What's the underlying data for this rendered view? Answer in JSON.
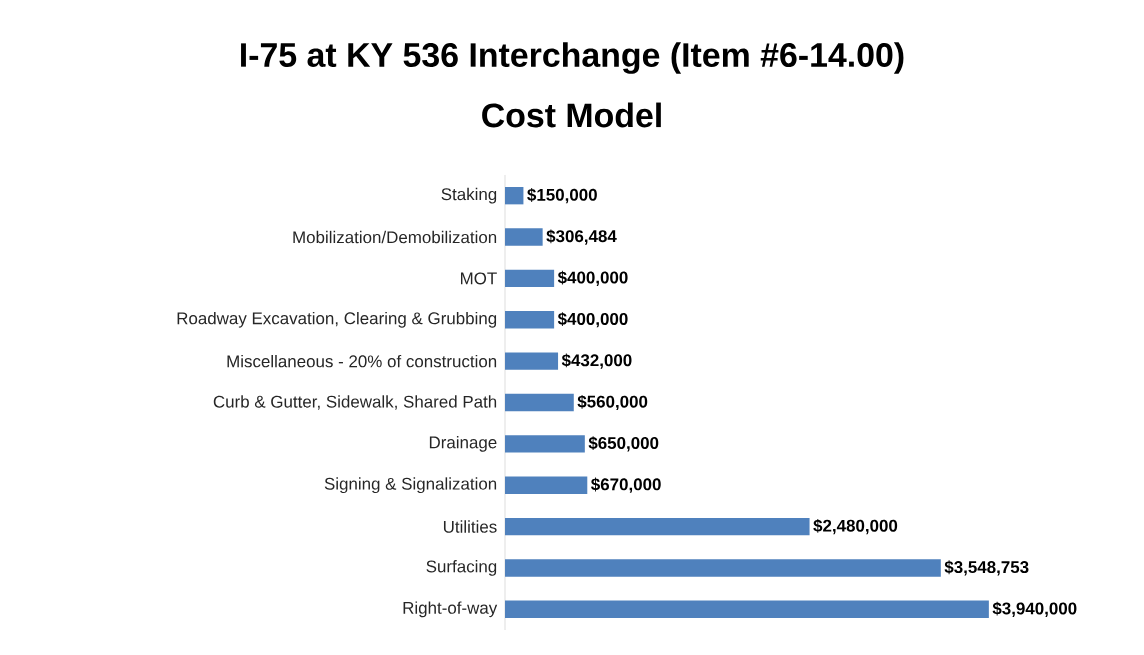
{
  "chart_data": {
    "type": "bar",
    "orientation": "horizontal",
    "title": "I-75 at KY 536 Interchange (Item #6-14.00)",
    "subtitle": "Cost Model",
    "categories": [
      "Staking",
      "Mobilization/Demobilization",
      "MOT",
      "Roadway Excavation, Clearing & Grubbing",
      "Miscellaneous - 20% of construction",
      "Curb & Gutter, Sidewalk, Shared Path",
      "Drainage",
      "Signing & Signalization",
      "Utilities",
      "Surfacing",
      "Right-of-way"
    ],
    "values": [
      150000,
      306484,
      400000,
      400000,
      432000,
      560000,
      650000,
      670000,
      2480000,
      3548753,
      3940000
    ],
    "value_labels": [
      "$150,000",
      "$306,484",
      "$400,000",
      "$400,000",
      "$432,000",
      "$560,000",
      "$650,000",
      "$670,000",
      "$2,480,000",
      "$3,548,753",
      "$3,940,000"
    ],
    "color": "#4f81bd"
  }
}
